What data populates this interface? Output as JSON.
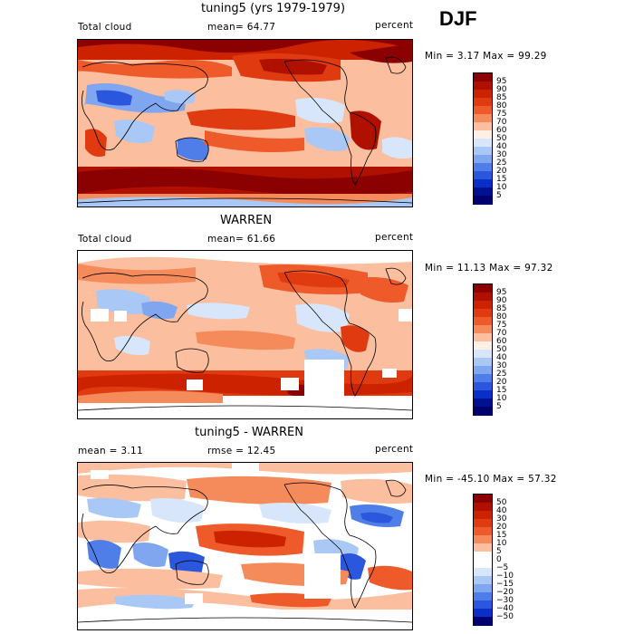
{
  "season": "DJF",
  "panels": [
    {
      "title": "tuning5 (yrs 1979-1979)",
      "left_label": "Total cloud",
      "center_label": "mean=  64.77",
      "right_label": "percent",
      "minmax": "Min =   3.17 Max =  99.29",
      "levels": [
        "95",
        "90",
        "85",
        "80",
        "75",
        "70",
        "60",
        "50",
        "40",
        "30",
        "25",
        "20",
        "15",
        "10",
        "5"
      ],
      "colors": [
        "#8b0000",
        "#b01000",
        "#cc2200",
        "#e03a10",
        "#ee5a2a",
        "#f58a5a",
        "#fbbfa0",
        "#fff0e6",
        "#d7e6fb",
        "#aac8f5",
        "#7fa6ef",
        "#4f7ee8",
        "#2a57dd",
        "#0a2fc8",
        "#00118f",
        "#000070"
      ]
    },
    {
      "title": "WARREN",
      "left_label": "Total cloud",
      "center_label": "mean=  61.66",
      "right_label": "percent",
      "minmax": "Min =  11.13 Max =  97.32",
      "levels": [
        "95",
        "90",
        "85",
        "80",
        "75",
        "70",
        "60",
        "50",
        "40",
        "30",
        "25",
        "20",
        "15",
        "10",
        "5"
      ],
      "colors": [
        "#8b0000",
        "#b01000",
        "#cc2200",
        "#e03a10",
        "#ee5a2a",
        "#f58a5a",
        "#fbbfa0",
        "#fff0e6",
        "#d7e6fb",
        "#aac8f5",
        "#7fa6ef",
        "#4f7ee8",
        "#2a57dd",
        "#0a2fc8",
        "#00118f",
        "#000070"
      ]
    },
    {
      "title": "tuning5 - WARREN",
      "left_label": "mean =    3.11",
      "center_label": "rmse =   12.45",
      "right_label": "percent",
      "minmax": "Min = -45.10 Max =  57.32",
      "levels": [
        "50",
        "40",
        "30",
        "20",
        "15",
        "10",
        "5",
        "0",
        "−5",
        "−10",
        "−15",
        "−20",
        "−30",
        "−40",
        "−50"
      ],
      "colors": [
        "#8b0000",
        "#b01000",
        "#cc2200",
        "#e03a10",
        "#ee5a2a",
        "#f58a5a",
        "#fbbfa0",
        "#ffffff",
        "#ffffff",
        "#d7e6fb",
        "#aac8f5",
        "#7fa6ef",
        "#4f7ee8",
        "#2a57dd",
        "#0a2fc8",
        "#000070"
      ]
    }
  ],
  "chart_data": [
    {
      "type": "heatmap",
      "title": "tuning5 (yrs 1979-1979)",
      "variable": "Total cloud",
      "units": "percent",
      "mean": 64.77,
      "min": 3.17,
      "max": 99.29,
      "contour_levels": [
        5,
        10,
        15,
        20,
        25,
        30,
        40,
        50,
        60,
        70,
        75,
        80,
        85,
        90,
        95
      ]
    },
    {
      "type": "heatmap",
      "title": "WARREN",
      "variable": "Total cloud",
      "units": "percent",
      "mean": 61.66,
      "min": 11.13,
      "max": 97.32,
      "contour_levels": [
        5,
        10,
        15,
        20,
        25,
        30,
        40,
        50,
        60,
        70,
        75,
        80,
        85,
        90,
        95
      ]
    },
    {
      "type": "heatmap",
      "title": "tuning5 - WARREN",
      "units": "percent",
      "mean": 3.11,
      "rmse": 12.45,
      "min": -45.1,
      "max": 57.32,
      "contour_levels": [
        -50,
        -40,
        -30,
        -20,
        -15,
        -10,
        -5,
        0,
        5,
        10,
        15,
        20,
        30,
        40,
        50
      ]
    }
  ]
}
